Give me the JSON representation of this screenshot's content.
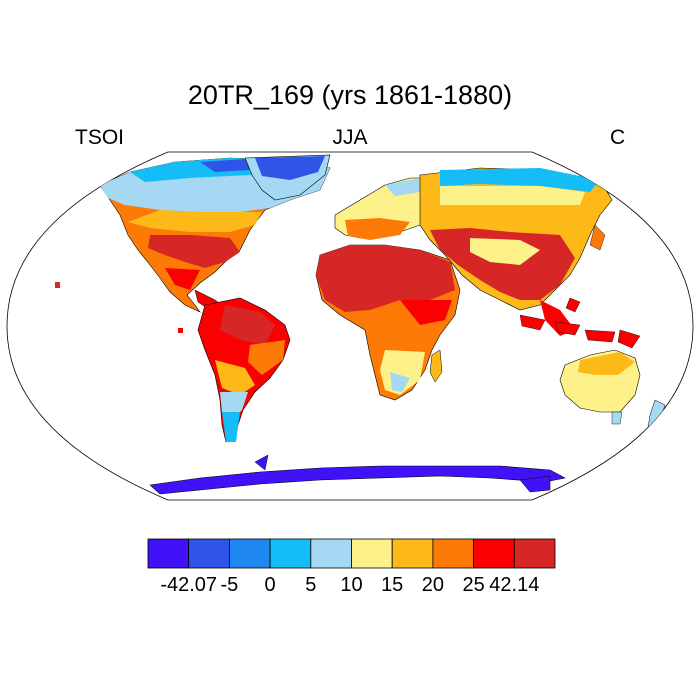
{
  "title": "20TR_169 (yrs 1861-1880)",
  "left_label": "TSOI",
  "center_label": "JJA",
  "right_label": "C",
  "map": {
    "projection": "robinson",
    "variable": "TSOI",
    "season": "JJA",
    "units": "C",
    "ocean_color": "#ffffff",
    "coastline_color": "#000000"
  },
  "colorbar": {
    "colors": [
      "#4112f7",
      "#2e55e8",
      "#1f88f0",
      "#14bdf5",
      "#a5d8f2",
      "#fdf289",
      "#fdb917",
      "#fd7a06",
      "#fa0000",
      "#d62626"
    ],
    "labels": [
      "-42.07",
      "-5",
      "0",
      "5",
      "10",
      "15",
      "20",
      "25",
      "42.14"
    ]
  }
}
